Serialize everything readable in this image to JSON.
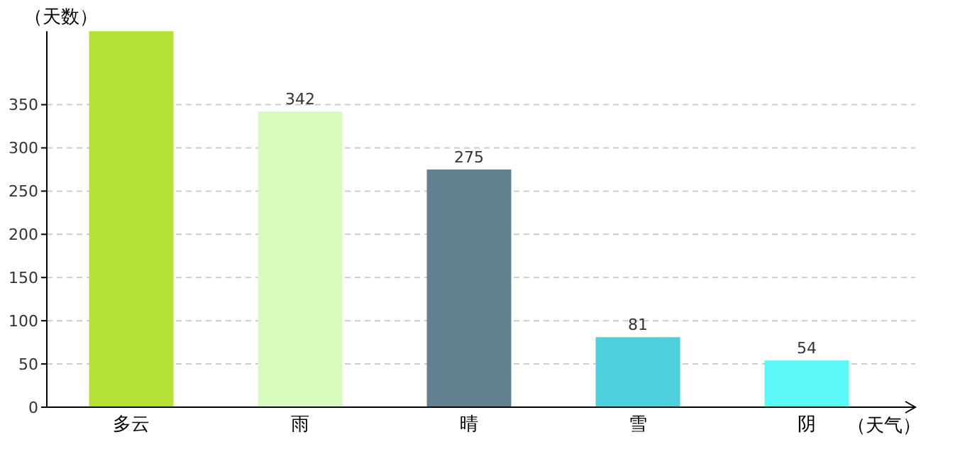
{
  "chart_data": {
    "type": "bar",
    "xlabel": "（天气）",
    "ylabel": "（天数）",
    "categories": [
      "多云",
      "雨",
      "晴",
      "雪",
      "阴"
    ],
    "values": [
      435,
      342,
      275,
      81,
      54
    ],
    "colors": [
      "#b3e235",
      "#d7fbba",
      "#618190",
      "#4ecfdc",
      "#5af8f6"
    ],
    "value_labels": [
      null,
      "342",
      "275",
      "81",
      "54"
    ],
    "ylim": [
      0,
      435
    ],
    "yticks": [
      0,
      50,
      100,
      150,
      200,
      250,
      300,
      350
    ],
    "grid": "y"
  }
}
